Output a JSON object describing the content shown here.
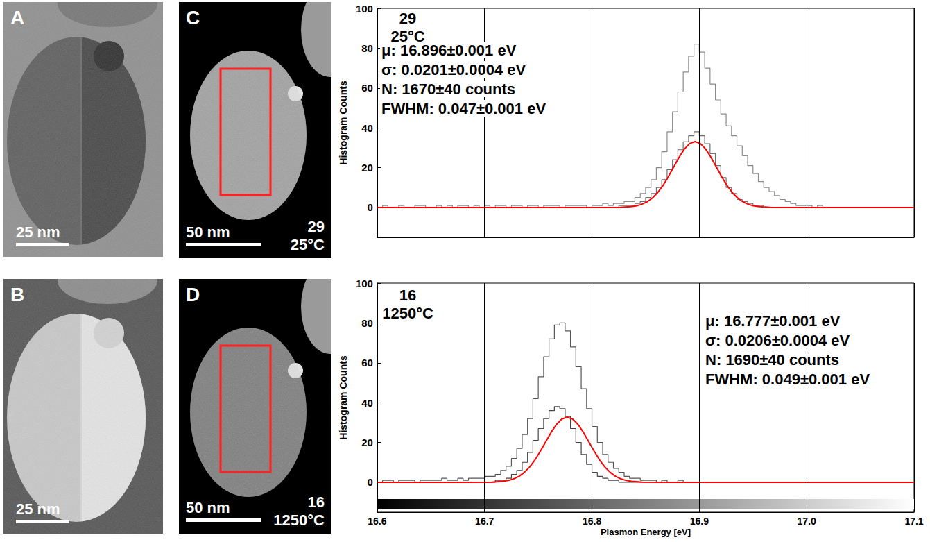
{
  "images": [
    {
      "letter": "A",
      "scale_bar": "25 nm"
    },
    {
      "letter": "B",
      "scale_bar": "25 nm"
    },
    {
      "letter": "C",
      "scale_bar": "50 nm",
      "labels": [
        "29",
        "25°C"
      ]
    },
    {
      "letter": "D",
      "scale_bar": "50 nm",
      "labels": [
        "16",
        "1250°C"
      ]
    }
  ],
  "chart_data": [
    {
      "type": "histogram",
      "annotations": [
        "29",
        "25°C"
      ],
      "fit_text": [
        "μ: 16.896±0.001 eV",
        "σ: 0.0201±0.0004 eV",
        "N: 1670±40 counts",
        "FWHM: 0.047±0.001 eV"
      ],
      "ylabel": "Histogram Counts",
      "xlim": [
        16.6,
        17.1
      ],
      "xticks": [
        16.6,
        16.7,
        16.8,
        16.9,
        {
          "value": 17,
          "label": "17.0"
        },
        17.1
      ],
      "ylim": [
        -15,
        100
      ],
      "yticks": [
        0,
        20,
        40,
        60,
        80,
        100
      ],
      "grid": true,
      "tick_labels": "y",
      "bins": [
        16.6,
        16.605,
        16.61,
        16.615,
        16.62,
        16.625,
        16.63,
        16.635,
        16.64,
        16.645,
        16.65,
        16.655,
        16.66,
        16.665,
        16.67,
        16.675,
        16.68,
        16.685,
        16.69,
        16.695,
        16.7,
        16.705,
        16.71,
        16.715,
        16.72,
        16.725,
        16.73,
        16.735,
        16.74,
        16.745,
        16.75,
        16.755,
        16.76,
        16.765,
        16.77,
        16.775,
        16.78,
        16.785,
        16.79,
        16.795,
        16.8,
        16.805,
        16.81,
        16.815,
        16.82,
        16.825,
        16.83,
        16.835,
        16.84,
        16.845,
        16.85,
        16.855,
        16.86,
        16.865,
        16.87,
        16.875,
        16.88,
        16.885,
        16.89,
        16.895,
        16.9,
        16.905,
        16.91,
        16.915,
        16.92,
        16.925,
        16.93,
        16.935,
        16.94,
        16.945,
        16.95,
        16.955,
        16.96,
        16.965,
        16.97,
        16.975,
        16.98,
        16.985,
        16.99,
        16.995,
        17.0,
        17.005,
        17.01,
        17.015,
        17.02,
        17.025,
        17.03,
        17.035,
        17.04,
        17.045,
        17.05,
        17.055,
        17.06,
        17.065,
        17.07,
        17.075,
        17.08,
        17.085,
        17.09,
        17.095,
        17.1
      ],
      "series": [
        {
          "type": "histogram",
          "color": "#8a8a8a",
          "values": [
            0,
            1,
            0,
            0,
            1,
            0,
            0,
            1,
            1,
            0,
            0,
            1,
            0,
            1,
            0,
            1,
            1,
            0,
            1,
            0,
            1,
            0,
            1,
            1,
            0,
            1,
            1,
            0,
            1,
            1,
            0,
            1,
            1,
            1,
            0,
            1,
            1,
            1,
            1,
            0,
            1,
            1,
            2,
            1,
            2,
            2,
            3,
            3,
            5,
            7,
            10,
            14,
            20,
            28,
            38,
            48,
            58,
            68,
            76,
            82,
            78,
            70,
            62,
            54,
            47,
            41,
            36,
            31,
            26,
            21,
            17,
            13,
            10,
            8,
            6,
            4,
            3,
            2,
            1,
            1,
            1,
            0,
            1,
            0,
            0,
            0,
            0,
            0,
            0,
            0,
            0,
            0,
            0,
            0,
            0,
            0,
            0,
            0,
            0,
            0
          ]
        },
        {
          "type": "histogram",
          "color": "#6e6e6e",
          "values": [
            0,
            0,
            0,
            0,
            0,
            0,
            0,
            0,
            0,
            0,
            0,
            0,
            0,
            0,
            0,
            0,
            0,
            0,
            0,
            0,
            0,
            0,
            0,
            0,
            0,
            0,
            0,
            0,
            0,
            0,
            0,
            0,
            0,
            0,
            0,
            0,
            0,
            0,
            0,
            0,
            0,
            0,
            0,
            0,
            0,
            1,
            1,
            1,
            2,
            3,
            5,
            7,
            10,
            14,
            19,
            24,
            29,
            33,
            36,
            38,
            36,
            32,
            27,
            21,
            15,
            10,
            7,
            4,
            3,
            2,
            1,
            1,
            0,
            0,
            0,
            0,
            0,
            0,
            0,
            0,
            0,
            0,
            0,
            0,
            0,
            0,
            0,
            0,
            0,
            0,
            0,
            0,
            0,
            0,
            0,
            0,
            0,
            0,
            0,
            0
          ]
        },
        {
          "type": "line",
          "color": "#ff0000",
          "x": [
            16.6,
            16.796,
            16.826,
            16.836,
            16.841,
            16.846,
            16.851,
            16.856,
            16.861,
            16.866,
            16.871,
            16.876,
            16.881,
            16.886,
            16.891,
            16.896,
            16.901,
            16.906,
            16.911,
            16.916,
            16.921,
            16.926,
            16.931,
            16.936,
            16.941,
            16.946,
            16.951,
            16.956,
            16.966,
            16.996,
            17.1
          ],
          "values": [
            0,
            0,
            0.1,
            0.4,
            0.8,
            1.5,
            2.7,
            4.6,
            7.3,
            10.9,
            15.3,
            20.2,
            25.1,
            29.3,
            32.1,
            33.1,
            32.1,
            29.3,
            25.1,
            20.2,
            15.3,
            10.9,
            7.3,
            4.6,
            2.7,
            1.5,
            0.8,
            0.4,
            0.1,
            0,
            0
          ]
        }
      ]
    },
    {
      "type": "histogram",
      "annotations": [
        "16",
        "1250°C"
      ],
      "fit_text": [
        "μ: 16.777±0.001 eV",
        "σ: 0.0206±0.0004 eV",
        "N: 1690±40 counts",
        "FWHM: 0.049±0.001 eV"
      ],
      "xlabel": "Plasmon Energy [eV]",
      "ylabel": "Histogram Counts",
      "xlim": [
        16.6,
        17.1
      ],
      "xticks": [
        16.6,
        16.7,
        16.8,
        16.9,
        {
          "value": 17,
          "label": "17.0"
        },
        17.1
      ],
      "ylim": [
        -15,
        100
      ],
      "yticks": [
        0,
        20,
        40,
        60,
        80,
        100
      ],
      "grid": true,
      "colorbar": {
        "range": [
          16.6,
          17.1
        ],
        "colors": [
          "#000000",
          "#ffffff"
        ]
      },
      "bins": [
        16.6,
        16.605,
        16.61,
        16.615,
        16.62,
        16.625,
        16.63,
        16.635,
        16.64,
        16.645,
        16.65,
        16.655,
        16.66,
        16.665,
        16.67,
        16.675,
        16.68,
        16.685,
        16.69,
        16.695,
        16.7,
        16.705,
        16.71,
        16.715,
        16.72,
        16.725,
        16.73,
        16.735,
        16.74,
        16.745,
        16.75,
        16.755,
        16.76,
        16.765,
        16.77,
        16.775,
        16.78,
        16.785,
        16.79,
        16.795,
        16.8,
        16.805,
        16.81,
        16.815,
        16.82,
        16.825,
        16.83,
        16.835,
        16.84,
        16.845,
        16.85,
        16.855,
        16.86,
        16.865,
        16.87,
        16.875,
        16.88,
        16.885,
        16.89,
        16.895,
        16.9,
        16.905,
        16.91,
        16.915,
        16.92,
        16.925,
        16.93,
        16.935,
        16.94,
        16.945,
        16.95,
        16.955,
        16.96,
        16.965,
        16.97,
        16.975,
        16.98,
        16.985,
        16.99,
        16.995,
        17.0,
        17.005,
        17.01,
        17.015,
        17.02,
        17.025,
        17.03,
        17.035,
        17.04,
        17.045,
        17.05,
        17.055,
        17.06,
        17.065,
        17.07,
        17.075,
        17.08,
        17.085,
        17.09,
        17.095,
        17.1
      ],
      "series": [
        {
          "type": "histogram",
          "color": "#555555",
          "values": [
            0,
            1,
            1,
            0,
            1,
            1,
            1,
            0,
            1,
            1,
            1,
            1,
            2,
            1,
            1,
            2,
            1,
            2,
            2,
            2,
            3,
            3,
            4,
            6,
            8,
            12,
            17,
            24,
            32,
            42,
            53,
            63,
            72,
            79,
            80,
            76,
            68,
            58,
            47,
            37,
            28,
            20,
            14,
            10,
            7,
            5,
            3,
            2,
            2,
            1,
            1,
            1,
            0,
            1,
            0,
            0,
            1,
            0,
            0,
            0,
            0,
            0,
            0,
            0,
            0,
            0,
            0,
            0,
            0,
            0,
            0,
            0,
            0,
            0,
            0,
            0,
            0,
            0,
            0,
            0,
            0,
            0,
            0,
            0,
            0,
            0,
            0,
            0,
            0,
            0,
            0,
            0,
            0,
            0,
            0,
            0,
            0,
            0,
            0,
            0
          ]
        },
        {
          "type": "histogram",
          "color": "#444444",
          "values": [
            0,
            0,
            0,
            0,
            0,
            0,
            0,
            0,
            0,
            0,
            0,
            0,
            0,
            0,
            0,
            0,
            0,
            0,
            0,
            0,
            0,
            0,
            1,
            1,
            2,
            4,
            6,
            10,
            15,
            21,
            27,
            32,
            36,
            38,
            37,
            33,
            27,
            20,
            14,
            9,
            5,
            3,
            2,
            1,
            1,
            0,
            0,
            0,
            0,
            0,
            0,
            0,
            0,
            0,
            0,
            0,
            0,
            0,
            0,
            0,
            0,
            0,
            0,
            0,
            0,
            0,
            0,
            0,
            0,
            0,
            0,
            0,
            0,
            0,
            0,
            0,
            0,
            0,
            0,
            0,
            0,
            0,
            0,
            0,
            0,
            0,
            0,
            0,
            0,
            0,
            0,
            0,
            0,
            0,
            0,
            0,
            0,
            0,
            0,
            0
          ]
        },
        {
          "type": "line",
          "color": "#ff0000",
          "x": [
            16.6,
            16.677,
            16.707,
            16.717,
            16.722,
            16.727,
            16.732,
            16.737,
            16.742,
            16.747,
            16.752,
            16.757,
            16.762,
            16.767,
            16.772,
            16.777,
            16.782,
            16.787,
            16.792,
            16.797,
            16.802,
            16.807,
            16.812,
            16.817,
            16.822,
            16.827,
            16.832,
            16.837,
            16.847,
            16.877,
            17.1
          ],
          "values": [
            0,
            0,
            0.1,
            0.5,
            0.9,
            1.7,
            3.0,
            5.0,
            7.7,
            11.3,
            15.7,
            20.4,
            25.1,
            29.1,
            31.8,
            32.7,
            31.8,
            29.1,
            25.1,
            20.4,
            15.7,
            11.3,
            7.7,
            5.0,
            3.0,
            1.7,
            0.9,
            0.5,
            0.1,
            0,
            0
          ]
        }
      ]
    }
  ]
}
